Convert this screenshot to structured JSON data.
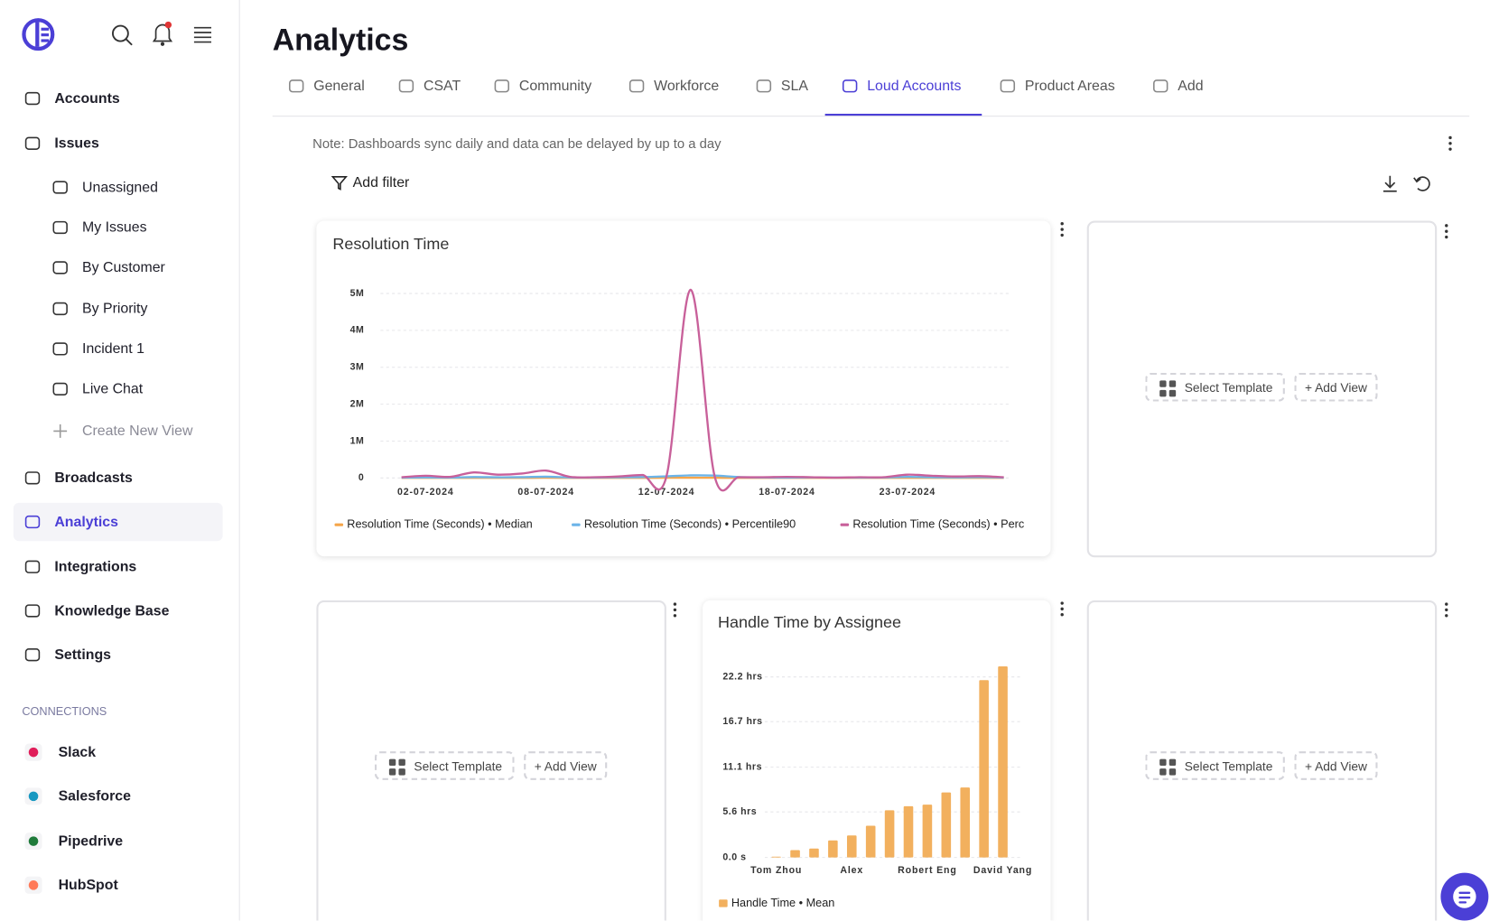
{
  "sidebar": {
    "main_nav": [
      "Accounts",
      "Issues"
    ],
    "issue_views": [
      "Unassigned",
      "My Issues",
      "By Customer",
      "By Priority",
      "Incident 1",
      "Live Chat"
    ],
    "create_view": "Create New View",
    "more_nav": [
      "Broadcasts",
      "Analytics",
      "Integrations",
      "Knowledge Base",
      "Settings"
    ],
    "active": "Analytics",
    "connections_heading": "CONNECTIONS",
    "connections": [
      "Slack",
      "Salesforce",
      "Pipedrive",
      "HubSpot"
    ]
  },
  "header": {
    "title": "Analytics",
    "tabs": [
      "General",
      "CSAT",
      "Community",
      "Workforce",
      "SLA",
      "Loud Accounts",
      "Product Areas",
      "Add"
    ],
    "active_tab": "Loud Accounts"
  },
  "note": "Note: Dashboards sync daily and data can be delayed by up to a day",
  "add_filter": "Add filter",
  "placeholder": {
    "select_template": "Select Template",
    "add_view": "+ Add View"
  },
  "chart_data": [
    {
      "type": "line",
      "title": "Resolution Time",
      "categories": [
        null,
        "02-07-2024",
        null,
        null,
        null,
        null,
        "08-07-2024",
        null,
        null,
        null,
        null,
        "12-07-2024",
        null,
        null,
        null,
        null,
        "18-07-2024",
        null,
        null,
        null,
        null,
        "23-07-2024",
        null,
        null,
        null,
        null
      ],
      "series": [
        {
          "name": "Resolution Time (Seconds) • Median",
          "color": "#f5a54a",
          "values": [
            2000,
            3000,
            2000,
            4000,
            3000,
            3000,
            5000,
            2000,
            2000,
            3000,
            4000,
            5000,
            6000,
            5000,
            3000,
            2000,
            2000,
            3000,
            2000,
            2000,
            2000,
            4000,
            3000,
            2000,
            3000,
            2000
          ]
        },
        {
          "name": "Resolution Time (Seconds) • Percentile90",
          "color": "#6cb4e8",
          "values": [
            8000,
            15000,
            10000,
            25000,
            18000,
            22000,
            35000,
            12000,
            10000,
            18000,
            25000,
            45000,
            70000,
            65000,
            25000,
            12000,
            10000,
            15000,
            10000,
            10000,
            12000,
            30000,
            20000,
            15000,
            20000,
            10000
          ]
        },
        {
          "name": "Resolution Time (Seconds) • Perc",
          "color": "#c8609a",
          "values": [
            20000,
            60000,
            30000,
            150000,
            90000,
            120000,
            200000,
            30000,
            20000,
            40000,
            80000,
            50000,
            5100000,
            40000,
            20000,
            20000,
            30000,
            20000,
            10000,
            20000,
            20000,
            90000,
            60000,
            40000,
            50000,
            20000
          ]
        }
      ],
      "ylim": [
        0,
        5400000
      ],
      "yticks": [
        0,
        {
          "value": 1000000,
          "label": "1M"
        },
        {
          "value": 2000000,
          "label": "2M"
        },
        {
          "value": 3000000,
          "label": "3M"
        },
        {
          "value": 4000000,
          "label": "4M"
        },
        {
          "value": 5000000,
          "label": "5M"
        }
      ],
      "grid": true,
      "legend": "bottom"
    },
    {
      "type": "bar",
      "title": "Handle Time by Assignee",
      "categories": [
        "Tom Zhou",
        null,
        null,
        null,
        "Alex",
        null,
        null,
        null,
        "Robert Eng",
        null,
        null,
        null,
        "David Yang"
      ],
      "series": [
        {
          "name": "Handle Time • Mean",
          "color": "#f2b05e",
          "values": [
            0.1,
            0.9,
            1.1,
            2.1,
            2.7,
            3.9,
            5.8,
            6.3,
            6.5,
            8.0,
            8.6,
            21.8,
            23.5
          ]
        }
      ],
      "ylim": [
        0,
        24.8
      ],
      "yticks": [
        {
          "value": 0,
          "label": "0.0 s"
        },
        {
          "value": 5.6,
          "label": "5.6 hrs"
        },
        {
          "value": 11.1,
          "label": "11.1 hrs"
        },
        {
          "value": 16.7,
          "label": "16.7 hrs"
        },
        {
          "value": 22.2,
          "label": "22.2 hrs"
        }
      ],
      "grid": true,
      "legend": "bottom"
    }
  ]
}
